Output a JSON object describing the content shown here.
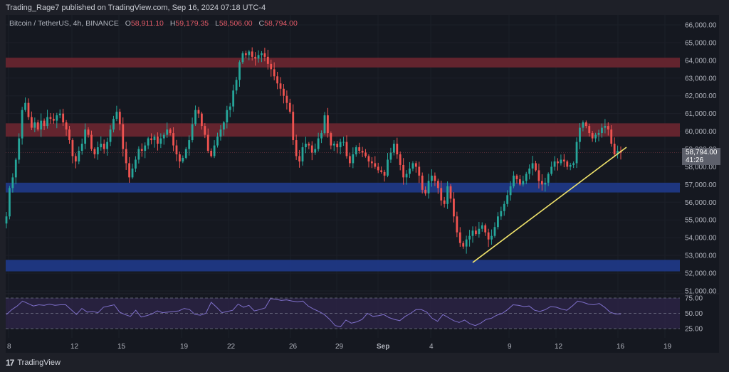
{
  "header": {
    "published": "Trading_Rage7 published on TradingView.com, Sep 16, 2024 07:18 UTC-4"
  },
  "legend": {
    "symbol": "Bitcoin / TetherUS, 4h, BINANCE",
    "open_label": "O",
    "open": "58,911.10",
    "high_label": "H",
    "high": "59,179.35",
    "low_label": "L",
    "low": "58,506.00",
    "close_label": "C",
    "close": "58,794.00"
  },
  "price_tag": {
    "price": "58,794.00",
    "countdown": "41:26"
  },
  "footer": {
    "logo": "17",
    "brand": "TradingView"
  },
  "colors": {
    "up": "#26a69a",
    "down": "#ef5350",
    "resistance_zone": "#6b2630",
    "support_zone": "#1f3a8a",
    "trendline": "#f0e36b",
    "rsi_line": "#7e6fc9",
    "rsi_band": "#2a2344"
  },
  "chart_data": [
    {
      "type": "candlestick",
      "title": "Bitcoin / TetherUS, 4h, BINANCE",
      "xlabel": "",
      "ylabel": "Price (USDT)",
      "ylim": [
        51000,
        66000
      ],
      "y_ticks": [
        "66,000.00",
        "65,000.00",
        "64,000.00",
        "63,000.00",
        "62,000.00",
        "61,000.00",
        "60,000.00",
        "59,000.00",
        "58,000.00",
        "57,000.00",
        "56,000.00",
        "55,000.00",
        "54,000.00",
        "53,000.00",
        "52,000.00",
        "51,000.00"
      ],
      "x_ticks": [
        "8",
        "12",
        "15",
        "19",
        "22",
        "26",
        "29",
        "Sep",
        "4",
        "9",
        "12",
        "16",
        "19"
      ],
      "last": {
        "open": 58911.1,
        "high": 59179.35,
        "low": 58506.0,
        "close": 58794.0
      },
      "zones": [
        {
          "type": "resistance",
          "from": 63600,
          "to": 64150
        },
        {
          "type": "resistance",
          "from": 59700,
          "to": 60450
        },
        {
          "type": "support",
          "from": 56550,
          "to": 57100
        },
        {
          "type": "support",
          "from": 52100,
          "to": 52750
        }
      ],
      "trendline": {
        "start": {
          "date": "Sep 7",
          "price": 52600
        },
        "end": {
          "date": "Sep 16",
          "price": 59000
        }
      },
      "closes_approx": [
        55200,
        56800,
        57400,
        58400,
        59600,
        61200,
        61600,
        60800,
        60200,
        60500,
        60100,
        60600,
        60300,
        60800,
        60700,
        60600,
        60900,
        61000,
        60500,
        60100,
        59500,
        58600,
        58300,
        58900,
        59300,
        60100,
        59800,
        59000,
        58700,
        59100,
        59300,
        59000,
        59400,
        60100,
        60700,
        61100,
        60400,
        59000,
        58200,
        57400,
        57900,
        58400,
        59000,
        58900,
        59200,
        59600,
        59500,
        59700,
        59300,
        59600,
        59800,
        60100,
        59900,
        59200,
        58700,
        58300,
        58500,
        59000,
        59500,
        60400,
        61200,
        61000,
        60300,
        59800,
        58900,
        58600,
        59200,
        59700,
        60100,
        60500,
        61200,
        61400,
        62300,
        62900,
        63900,
        64400,
        64300,
        64500,
        64200,
        64100,
        64300,
        64400,
        64200,
        63800,
        63500,
        63100,
        62700,
        62400,
        62000,
        61600,
        61100,
        59500,
        58600,
        58300,
        59100,
        59300,
        59200,
        58800,
        59000,
        59600,
        59900,
        60900,
        59900,
        59200,
        59300,
        59100,
        59400,
        59400,
        58600,
        58200,
        58700,
        59100,
        58900,
        58800,
        58600,
        58300,
        58200,
        58000,
        57800,
        57700,
        57500,
        58400,
        58800,
        59300,
        58700,
        58100,
        57400,
        57600,
        57900,
        58200,
        58000,
        57500,
        56700,
        56500,
        57200,
        57500,
        57200,
        56800,
        56100,
        55900,
        56900,
        56200,
        55200,
        54300,
        53700,
        53500,
        53900,
        54100,
        54400,
        54200,
        54500,
        54700,
        54300,
        53900,
        54100,
        54600,
        55200,
        55500,
        55900,
        56400,
        56900,
        57500,
        57300,
        57000,
        57200,
        57600,
        57900,
        58200,
        57800,
        57200,
        57000,
        57100,
        57600,
        58000,
        58300,
        58200,
        58400,
        58300,
        58000,
        58100,
        58200,
        59400,
        60200,
        60500,
        60300,
        59900,
        59600,
        59800,
        59900,
        60200,
        60300,
        60100,
        59300,
        58700,
        58900,
        58794
      ],
      "rsi": {
        "levels": [
          75,
          50,
          25
        ],
        "y_ticks": [
          "75.00",
          "50.00",
          "25.00"
        ],
        "values_approx": [
          48,
          56,
          62,
          70,
          66,
          62,
          64,
          63,
          65,
          63,
          64,
          64,
          56,
          48,
          58,
          52,
          53,
          51,
          60,
          62,
          64,
          52,
          48,
          45,
          55,
          44,
          46,
          49,
          54,
          51,
          52,
          53,
          54,
          58,
          56,
          48,
          47,
          50,
          68,
          60,
          51,
          53,
          55,
          65,
          60,
          63,
          54,
          56,
          59,
          74,
          73,
          71,
          72,
          70,
          69,
          70,
          62,
          57,
          53,
          48,
          40,
          30,
          28,
          39,
          34,
          36,
          40,
          50,
          45,
          46,
          48,
          43,
          40,
          38,
          45,
          50,
          56,
          56,
          52,
          42,
          37,
          48,
          43,
          38,
          35,
          39,
          33,
          30,
          34,
          40,
          42,
          47,
          50,
          56,
          64,
          63,
          61,
          62,
          55,
          53,
          56,
          61,
          60,
          57,
          55,
          62,
          70,
          68,
          65,
          64,
          66,
          60,
          52,
          49,
          49
        ]
      }
    }
  ]
}
